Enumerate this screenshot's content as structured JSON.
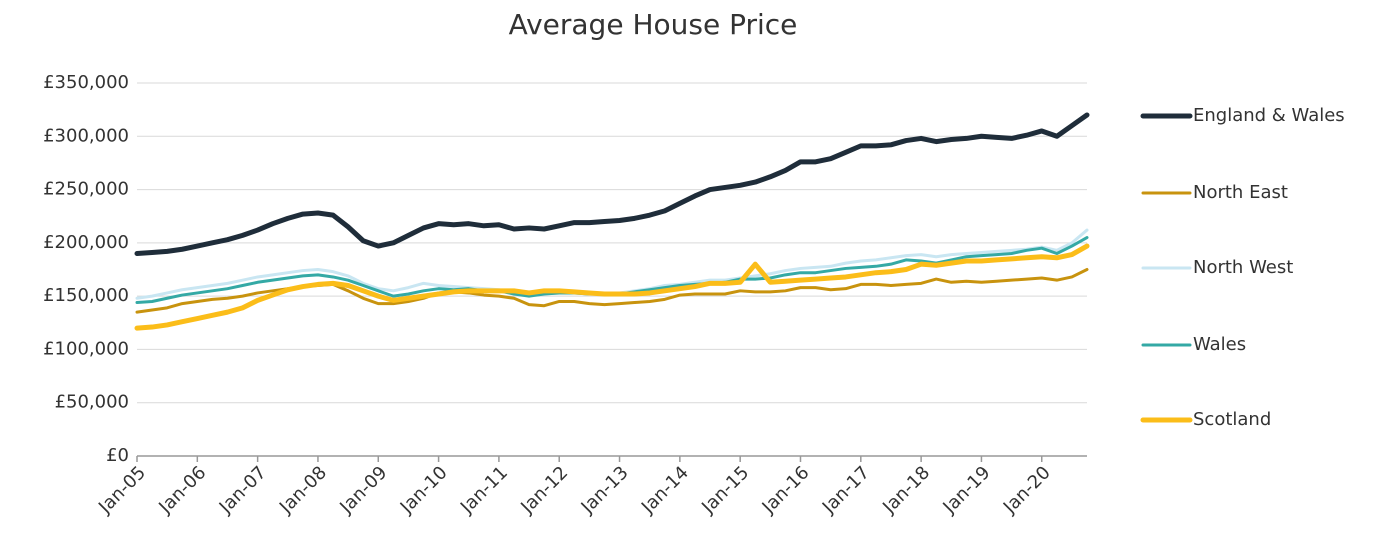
{
  "chart_data": {
    "type": "line",
    "title": "Average House Price",
    "categories": [
      "Jan-05",
      null,
      null,
      null,
      "Jan-06",
      null,
      null,
      null,
      "Jan-07",
      null,
      null,
      null,
      "Jan-08",
      null,
      null,
      null,
      "Jan-09",
      null,
      null,
      null,
      "Jan-10",
      null,
      null,
      null,
      "Jan-11",
      null,
      null,
      null,
      "Jan-12",
      null,
      null,
      null,
      "Jan-13",
      null,
      null,
      null,
      "Jan-14",
      null,
      null,
      null,
      "Jan-15",
      null,
      null,
      null,
      "Jan-16",
      null,
      null,
      null,
      "Jan-17",
      null,
      null,
      null,
      "Jan-18",
      null,
      null,
      null,
      "Jan-19",
      null,
      null,
      null,
      "Jan-20",
      null,
      null,
      null
    ],
    "series": [
      {
        "name": "England & Wales",
        "color": "#1f2d3a",
        "values": [
          190000,
          191000,
          192000,
          194000,
          197000,
          200000,
          203000,
          207000,
          212000,
          218000,
          223000,
          227000,
          228000,
          226000,
          215000,
          202000,
          197000,
          200000,
          207000,
          214000,
          218000,
          217000,
          218000,
          216000,
          217000,
          213000,
          214000,
          213000,
          216000,
          219000,
          219000,
          220000,
          221000,
          223000,
          226000,
          230000,
          237000,
          244000,
          250000,
          252000,
          254000,
          257000,
          262000,
          268000,
          276000,
          276000,
          279000,
          285000,
          291000,
          291000,
          292000,
          296000,
          298000,
          295000,
          297000,
          298000,
          300000,
          299000,
          298000,
          301000,
          305000,
          300000,
          310000,
          320000
        ]
      },
      {
        "name": "North East",
        "color": "#c8930e",
        "values": [
          135000,
          137000,
          139000,
          143000,
          145000,
          147000,
          148000,
          150000,
          153000,
          155000,
          157000,
          159000,
          160000,
          161000,
          155000,
          148000,
          143000,
          143000,
          145000,
          148000,
          153000,
          154000,
          153000,
          151000,
          150000,
          148000,
          142000,
          141000,
          145000,
          145000,
          143000,
          142000,
          143000,
          144000,
          145000,
          147000,
          151000,
          152000,
          152000,
          152000,
          155000,
          154000,
          154000,
          155000,
          158000,
          158000,
          156000,
          157000,
          161000,
          161000,
          160000,
          161000,
          162000,
          166000,
          163000,
          164000,
          163000,
          164000,
          165000,
          166000,
          167000,
          165000,
          168000,
          175000
        ]
      },
      {
        "name": "North West",
        "color": "#c9e6f2",
        "values": [
          148000,
          150000,
          153000,
          156000,
          158000,
          160000,
          162000,
          165000,
          168000,
          170000,
          172000,
          174000,
          175000,
          173000,
          169000,
          162000,
          157000,
          155000,
          158000,
          162000,
          160000,
          159000,
          158000,
          157000,
          156000,
          153000,
          152000,
          153000,
          153000,
          153000,
          152000,
          152000,
          153000,
          155000,
          157000,
          160000,
          161000,
          163000,
          165000,
          165000,
          167000,
          169000,
          171000,
          174000,
          176000,
          177000,
          178000,
          181000,
          183000,
          184000,
          186000,
          188000,
          189000,
          187000,
          189000,
          190000,
          191000,
          192000,
          193000,
          194000,
          196000,
          193000,
          200000,
          212000
        ]
      },
      {
        "name": "Wales",
        "color": "#34a9a5",
        "values": [
          144000,
          145000,
          148000,
          151000,
          153000,
          155000,
          157000,
          160000,
          163000,
          165000,
          167000,
          169000,
          170000,
          168000,
          165000,
          160000,
          155000,
          150000,
          152000,
          155000,
          157000,
          156000,
          157000,
          155000,
          155000,
          152000,
          150000,
          152000,
          153000,
          153000,
          152000,
          152000,
          152000,
          154000,
          156000,
          158000,
          160000,
          161000,
          162000,
          163000,
          166000,
          166000,
          167000,
          170000,
          172000,
          172000,
          174000,
          176000,
          177000,
          178000,
          180000,
          184000,
          183000,
          181000,
          184000,
          187000,
          188000,
          189000,
          190000,
          193000,
          195000,
          190000,
          197000,
          205000
        ]
      },
      {
        "name": "Scotland",
        "color": "#fbbd19",
        "values": [
          120000,
          121000,
          123000,
          126000,
          129000,
          132000,
          135000,
          139000,
          146000,
          151000,
          156000,
          159000,
          161000,
          162000,
          160000,
          155000,
          150000,
          146000,
          148000,
          150000,
          152000,
          154000,
          155000,
          155000,
          155000,
          155000,
          153000,
          155000,
          155000,
          154000,
          153000,
          152000,
          152000,
          152000,
          153000,
          155000,
          157000,
          159000,
          162000,
          162000,
          163000,
          180000,
          163000,
          164000,
          165000,
          166000,
          167000,
          168000,
          170000,
          172000,
          173000,
          175000,
          180000,
          179000,
          181000,
          183000,
          183000,
          184000,
          185000,
          186000,
          187000,
          186000,
          189000,
          197000
        ]
      }
    ],
    "ylim": [
      0,
      350000
    ],
    "yticks": [
      {
        "value": 0,
        "label": "£0"
      },
      {
        "value": 50000,
        "label": "£50,000"
      },
      {
        "value": 100000,
        "label": "£100,000"
      },
      {
        "value": 150000,
        "label": "£150,000"
      },
      {
        "value": 200000,
        "label": "£200,000"
      },
      {
        "value": 250000,
        "label": "£250,000"
      },
      {
        "value": 300000,
        "label": "£300,000"
      },
      {
        "value": 350000,
        "label": "£350,000"
      }
    ],
    "grid": true,
    "legend": "right"
  }
}
